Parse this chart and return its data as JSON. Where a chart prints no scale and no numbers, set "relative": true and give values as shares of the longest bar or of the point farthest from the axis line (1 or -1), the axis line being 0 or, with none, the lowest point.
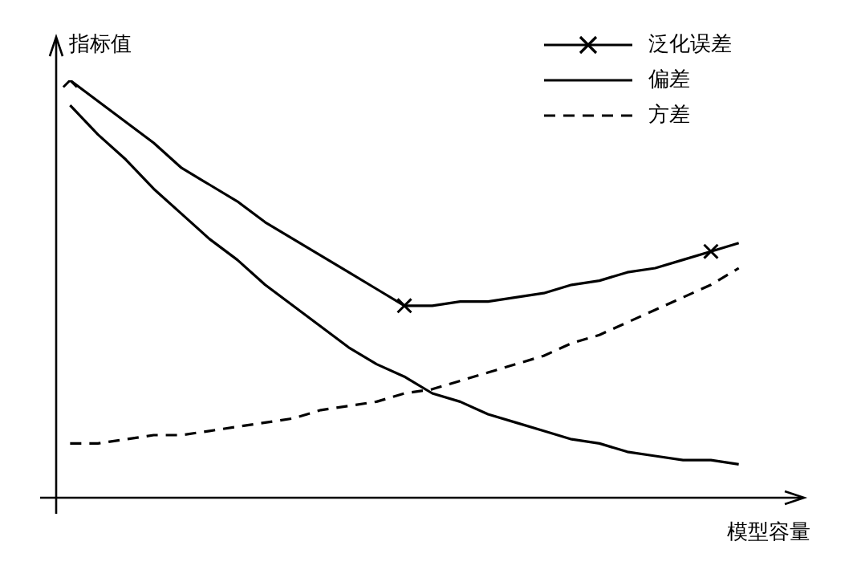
{
  "chart_data": {
    "type": "line",
    "relative": true,
    "xlabel": "模型容量",
    "ylabel": "指标值",
    "legend": "top right",
    "grid": false,
    "categories": [
      null,
      null,
      null,
      null,
      null,
      null,
      null,
      null,
      null,
      null,
      null,
      null,
      null,
      null,
      null,
      null,
      null,
      null,
      null,
      null,
      null,
      null,
      null,
      null,
      null
    ],
    "series": [
      {
        "name": "泛化误差",
        "color": "#000000",
        "line_style": "solid",
        "marker": "none",
        "values": [
          1,
          0.95,
          0.9,
          0.85,
          0.79,
          0.75,
          0.71,
          0.66,
          0.62,
          0.58,
          0.54,
          0.5,
          0.46,
          0.46,
          0.47,
          0.47,
          0.48,
          0.49,
          0.51,
          0.52,
          0.54,
          0.55,
          0.57,
          0.59,
          0.61
        ]
      },
      {
        "color": "#000000",
        "marker": "cross",
        "line_style": "solid",
        "values": [
          1,
          null,
          null,
          null,
          null,
          null,
          null,
          null,
          null,
          null,
          null,
          null,
          0.46,
          null,
          null,
          null,
          null,
          null,
          null,
          null,
          null,
          null,
          null,
          0.59,
          null
        ]
      },
      {
        "name": "偏差",
        "color": "#000000",
        "line_style": "solid",
        "marker": "none",
        "values": [
          0.94,
          0.87,
          0.81,
          0.74,
          0.68,
          0.62,
          0.57,
          0.51,
          0.46,
          0.41,
          0.36,
          0.32,
          0.29,
          0.25,
          0.23,
          0.2,
          0.18,
          0.16,
          0.14,
          0.13,
          0.11,
          0.1,
          0.09,
          0.09,
          0.08
        ]
      },
      {
        "name": "方差",
        "color": "#000000",
        "line_style": "dashed",
        "marker": "none",
        "values": [
          0.13,
          0.13,
          0.14,
          0.15,
          0.15,
          0.16,
          0.17,
          0.18,
          0.19,
          0.21,
          0.22,
          0.23,
          0.25,
          0.26,
          0.28,
          0.3,
          0.32,
          0.34,
          0.37,
          0.39,
          0.42,
          0.45,
          0.48,
          0.51,
          0.55
        ]
      }
    ]
  }
}
